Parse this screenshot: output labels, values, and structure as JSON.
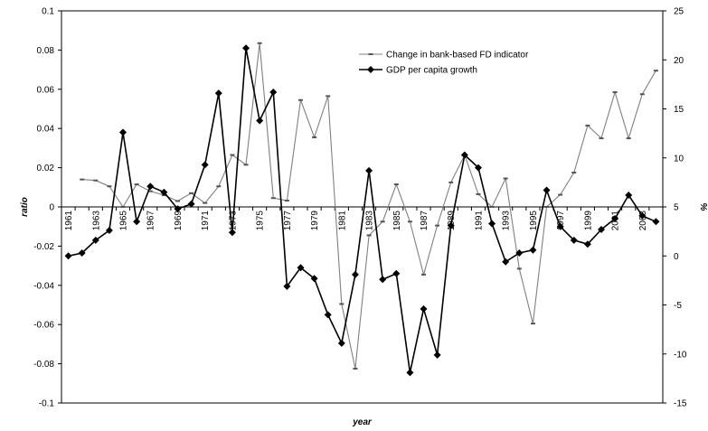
{
  "chart_data": {
    "type": "line",
    "title": "",
    "xlabel": "year",
    "ylabel_left": "ratio",
    "ylabel_right": "%",
    "ylim_left": [
      -0.1,
      0.1
    ],
    "ylim_right": [
      -15,
      25
    ],
    "yticks_left": [
      "0.1",
      "0.08",
      "0.06",
      "0.04",
      "0.02",
      "0",
      "-0.02",
      "-0.04",
      "-0.06",
      "-0.08",
      "-0.1"
    ],
    "yticks_right": [
      "25",
      "20",
      "15",
      "10",
      "5",
      "0",
      "-5",
      "-10",
      "-15"
    ],
    "x": [
      1961,
      1962,
      1963,
      1964,
      1965,
      1966,
      1967,
      1968,
      1969,
      1970,
      1971,
      1972,
      1973,
      1974,
      1975,
      1976,
      1977,
      1978,
      1979,
      1980,
      1981,
      1982,
      1983,
      1984,
      1985,
      1986,
      1987,
      1988,
      1989,
      1990,
      1991,
      1992,
      1993,
      1994,
      1995,
      1996,
      1997,
      1998,
      1999,
      2000,
      2001,
      2002,
      2003,
      2004
    ],
    "xtick_labels": [
      "1961",
      "1963",
      "1965",
      "1967",
      "1969",
      "1971",
      "1973",
      "1975",
      "1977",
      "1979",
      "1981",
      "1983",
      "1985",
      "1987",
      "1989",
      "1991",
      "1993",
      "1995",
      "1997",
      "1999",
      "2001",
      "2003"
    ],
    "grid": false,
    "legend_position": "top-right",
    "series": [
      {
        "name": "Change in bank-based FD indicator",
        "axis": "left",
        "color": "#808080",
        "marker": "dash",
        "values": [
          null,
          0.014,
          0.0135,
          0.0105,
          0.0,
          0.0115,
          0.008,
          0.006,
          0.003,
          0.007,
          0.002,
          0.0105,
          0.0265,
          0.0215,
          0.0835,
          0.0045,
          0.0032,
          0.0545,
          0.0355,
          0.0565,
          -0.0495,
          -0.0825,
          -0.0145,
          -0.0075,
          0.0115,
          -0.0075,
          -0.0345,
          -0.0095,
          0.0125,
          0.0265,
          0.0065,
          -0.0,
          0.0145,
          -0.0315,
          -0.0595,
          0.0,
          0.0062,
          0.0175,
          0.0415,
          0.035,
          0.0585,
          0.035,
          0.0575,
          0.0695
        ]
      },
      {
        "name": "GDP per capita growth",
        "axis": "right",
        "color": "#000000",
        "marker": "diamond",
        "values": [
          0.0,
          0.3,
          1.6,
          2.6,
          12.6,
          3.5,
          7.1,
          6.5,
          4.8,
          5.3,
          9.3,
          16.6,
          2.4,
          21.2,
          13.8,
          16.7,
          -3.1,
          -1.2,
          -2.3,
          -6.0,
          -8.9,
          -1.9,
          8.7,
          -2.4,
          -1.8,
          -11.9,
          -5.4,
          -10.1,
          3.1,
          10.3,
          9.0,
          3.3,
          -0.6,
          0.3,
          0.6,
          6.7,
          3.0,
          1.6,
          1.2,
          2.7,
          3.8,
          6.2,
          4.1,
          3.5
        ]
      }
    ]
  }
}
